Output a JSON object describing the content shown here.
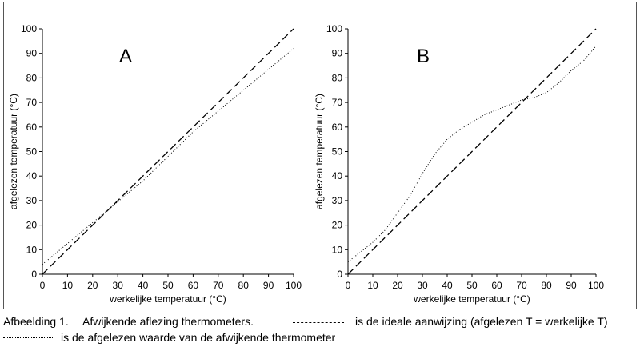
{
  "chart_data": [
    {
      "type": "line",
      "panel_label": "A",
      "xlabel": "werkelijke temperatuur (°C)",
      "ylabel": "afgelezen temperatuur (°C)",
      "xlim": [
        0,
        100
      ],
      "ylim": [
        0,
        100
      ],
      "x_ticks": [
        0,
        10,
        20,
        30,
        40,
        50,
        60,
        70,
        80,
        90,
        100
      ],
      "y_ticks": [
        0,
        10,
        20,
        30,
        40,
        50,
        60,
        70,
        80,
        90,
        100
      ],
      "grid": false,
      "series": [
        {
          "style": "dashed",
          "x": [
            0,
            100
          ],
          "y": [
            0,
            100
          ]
        },
        {
          "style": "dotted",
          "x": [
            0,
            20,
            40,
            60,
            80,
            100
          ],
          "y": [
            4,
            21,
            38,
            58,
            75,
            92
          ]
        }
      ]
    },
    {
      "type": "line",
      "panel_label": "B",
      "xlabel": "werkelijke temperatuur (°C)",
      "ylabel": "afgelezen temperatuur (°C)",
      "xlim": [
        0,
        100
      ],
      "ylim": [
        0,
        100
      ],
      "x_ticks": [
        0,
        10,
        20,
        30,
        40,
        50,
        60,
        70,
        80,
        90,
        100
      ],
      "y_ticks": [
        0,
        10,
        20,
        30,
        40,
        50,
        60,
        70,
        80,
        90,
        100
      ],
      "grid": false,
      "series": [
        {
          "style": "dashed",
          "x": [
            0,
            100
          ],
          "y": [
            0,
            100
          ]
        },
        {
          "style": "dotted",
          "x": [
            0,
            5,
            10,
            15,
            20,
            25,
            30,
            35,
            40,
            45,
            50,
            55,
            60,
            65,
            70,
            75,
            80,
            85,
            90,
            95,
            100
          ],
          "y": [
            5,
            9,
            13,
            18,
            25,
            32,
            41,
            49,
            55,
            59,
            62,
            65,
            67,
            69,
            71,
            72,
            74,
            78,
            83,
            87,
            93
          ]
        }
      ]
    }
  ],
  "caption": {
    "label": "Afbeelding 1.",
    "title": "Afwijkende aflezing thermometers.",
    "dashed_text": "is de ideale aanwijzing (afgelezen T = werkelijke T)",
    "dotted_text": "is de afgelezen waarde van de afwijkende thermometer"
  }
}
